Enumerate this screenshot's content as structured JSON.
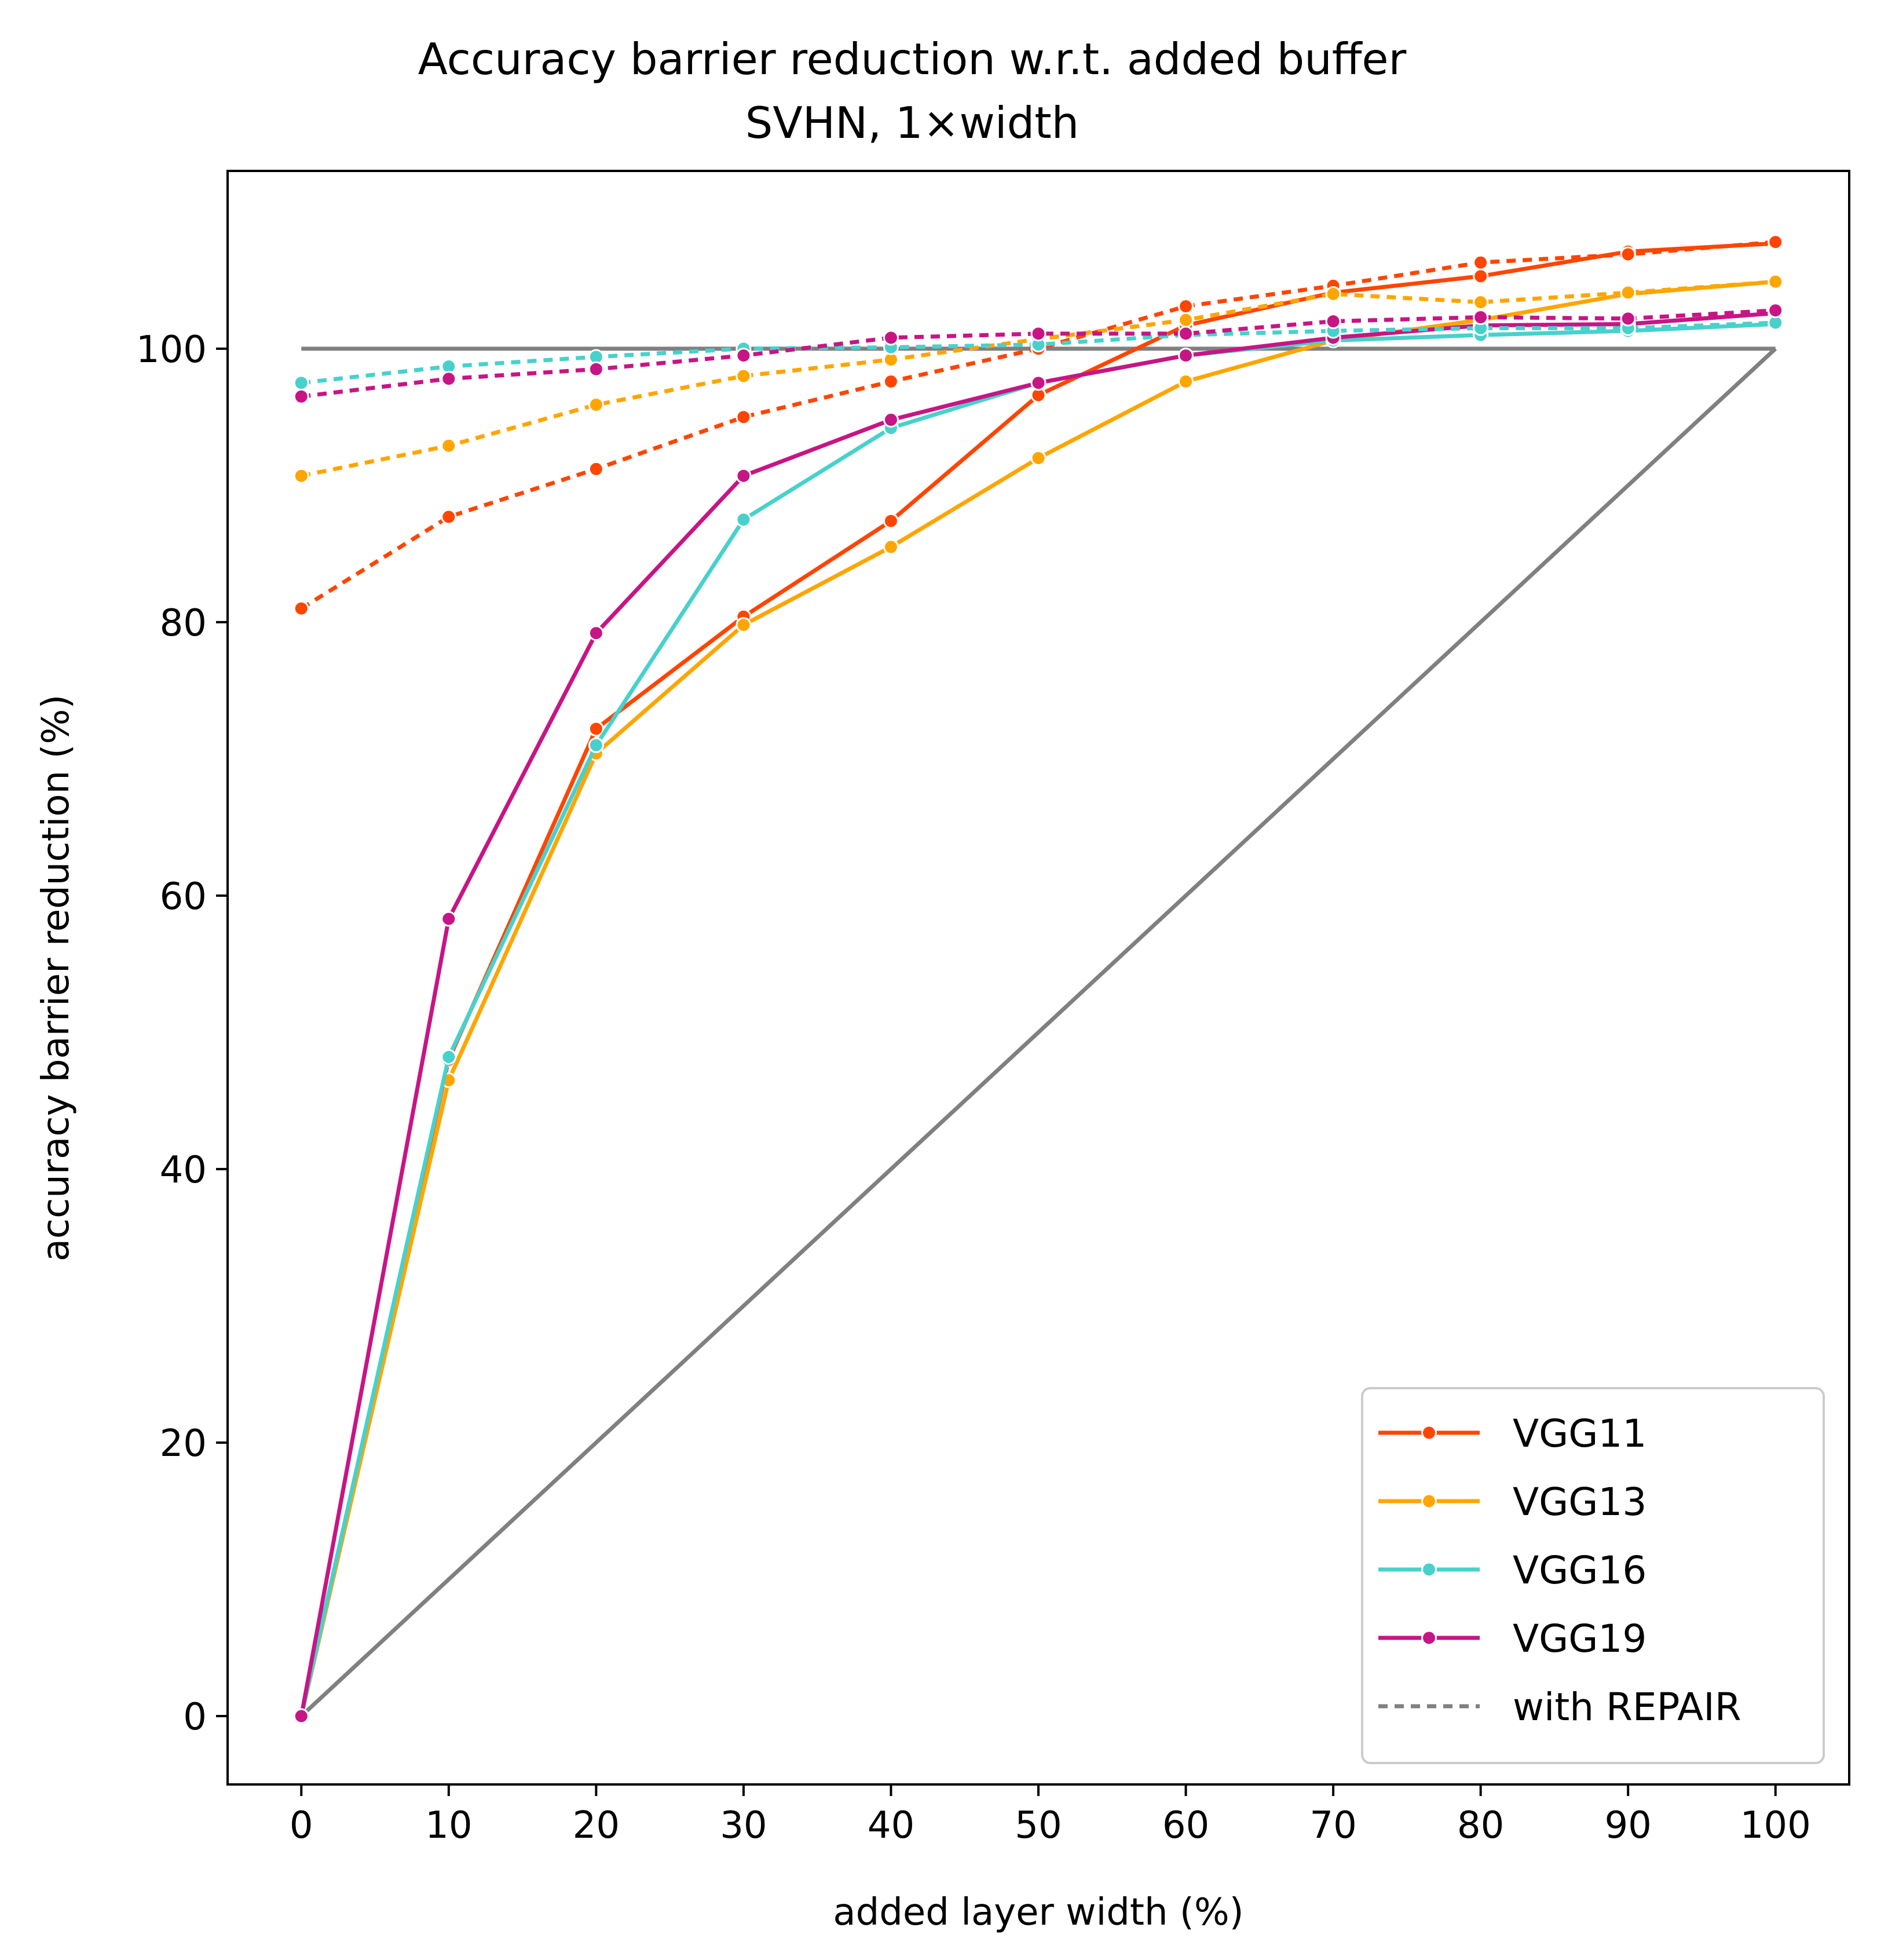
{
  "chart_data": {
    "type": "line",
    "title": "Accuracy barrier reduction w.r.t. added buffer",
    "subtitle": "SVHN, 1×width",
    "xlabel": "added layer width (%)",
    "ylabel": "accuracy barrier reduction (%)",
    "xlim": [
      -5,
      105
    ],
    "ylim": [
      -5,
      113
    ],
    "xticks": [
      0,
      10,
      20,
      30,
      40,
      50,
      60,
      70,
      80,
      90,
      100
    ],
    "yticks": [
      0,
      20,
      40,
      60,
      80,
      100
    ],
    "x": [
      0,
      10,
      20,
      30,
      40,
      50,
      60,
      70,
      80,
      90,
      100
    ],
    "grid": false,
    "legend_position": "bottom-right",
    "reference_lines": [
      {
        "x": [
          0,
          100
        ],
        "y": [
          100,
          100
        ],
        "color": "#808080"
      },
      {
        "x": [
          0,
          100
        ],
        "y": [
          0,
          100
        ],
        "color": "#808080"
      }
    ],
    "series": [
      {
        "name": "VGG11",
        "color": "#FF4500",
        "style": "solid",
        "values": [
          0,
          48,
          72.2,
          80.4,
          87.4,
          96.6,
          101.7,
          104.1,
          105.3,
          107.1,
          107.7
        ]
      },
      {
        "name": "VGG13",
        "color": "#FFA500",
        "style": "solid",
        "values": [
          0,
          46.5,
          70.4,
          79.8,
          85.5,
          92.0,
          97.6,
          100.6,
          102.1,
          104.0,
          104.9
        ]
      },
      {
        "name": "VGG16",
        "color": "#48D1CC",
        "style": "solid",
        "values": [
          0,
          48.2,
          71.0,
          87.5,
          94.2,
          97.5,
          99.5,
          100.6,
          101.0,
          101.3,
          101.8
        ]
      },
      {
        "name": "VGG19",
        "color": "#C71585",
        "style": "solid",
        "values": [
          0,
          58.3,
          79.2,
          90.7,
          94.8,
          97.5,
          99.5,
          100.8,
          101.7,
          101.8,
          102.6
        ]
      },
      {
        "name": "VGG11",
        "color": "#FF4500",
        "style": "dotted",
        "repair": true,
        "values": [
          81.0,
          87.7,
          91.2,
          95.0,
          97.6,
          100.0,
          103.1,
          104.6,
          106.3,
          106.9,
          107.8
        ]
      },
      {
        "name": "VGG13",
        "color": "#FFA500",
        "style": "dotted",
        "repair": true,
        "values": [
          90.7,
          92.9,
          95.9,
          98.0,
          99.2,
          100.7,
          102.1,
          104.0,
          103.4,
          104.1,
          104.9
        ]
      },
      {
        "name": "VGG16",
        "color": "#48D1CC",
        "style": "dotted",
        "repair": true,
        "values": [
          97.5,
          98.7,
          99.4,
          100.0,
          100.1,
          100.3,
          101.0,
          101.3,
          101.5,
          101.5,
          101.9
        ]
      },
      {
        "name": "VGG19",
        "color": "#C71585",
        "style": "dotted",
        "repair": true,
        "values": [
          96.5,
          97.8,
          98.5,
          99.5,
          100.8,
          101.1,
          101.1,
          102.0,
          102.3,
          102.2,
          102.8
        ]
      }
    ],
    "legend": [
      {
        "label": "VGG11",
        "color": "#FF4500",
        "style": "solid"
      },
      {
        "label": "VGG13",
        "color": "#FFA500",
        "style": "solid"
      },
      {
        "label": "VGG16",
        "color": "#48D1CC",
        "style": "solid"
      },
      {
        "label": "VGG19",
        "color": "#C71585",
        "style": "solid"
      },
      {
        "label": "with REPAIR",
        "color": "#808080",
        "style": "dotted"
      }
    ]
  }
}
